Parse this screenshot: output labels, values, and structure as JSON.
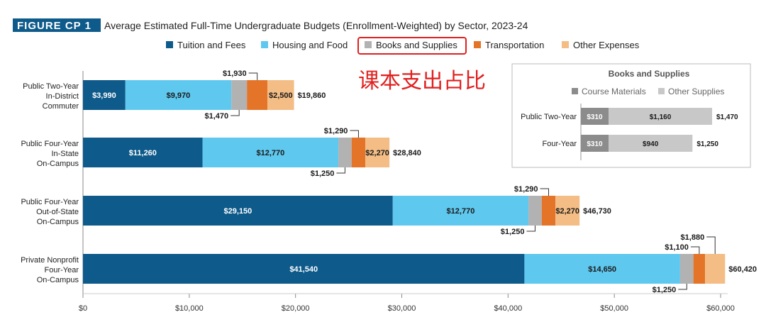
{
  "figure_label": "FIGURE CP 1",
  "chart_title": "Average Estimated Full-Time Undergraduate Budgets (Enrollment-Weighted) by Sector, 2023-24",
  "annotation": "课本支出占比",
  "colors": {
    "tuition": "#0e5a8a",
    "housing": "#5fc8ef",
    "books": "#b2b2b2",
    "transport": "#e37428",
    "other": "#f4bd85",
    "badge": "#0e5a8a",
    "highlight": "#e02020",
    "annotation": "#e02020",
    "axis": "#888888",
    "text": "#222222",
    "course_materials": "#8c8c8c",
    "other_supplies": "#c8c8c8"
  },
  "chart_data": {
    "type": "bar",
    "orientation": "horizontal",
    "stacked": true,
    "title": "Average Estimated Full-Time Undergraduate Budgets (Enrollment-Weighted) by Sector, 2023-24",
    "legend": [
      "Tuition and Fees",
      "Housing and Food",
      "Books and Supplies",
      "Transportation",
      "Other Expenses"
    ],
    "highlighted_legend_item": "Books and Supplies",
    "xlim": [
      0,
      60000
    ],
    "x_ticks": [
      0,
      10000,
      20000,
      30000,
      40000,
      50000,
      60000
    ],
    "x_tick_labels": [
      "$0",
      "$10,000",
      "$20,000",
      "$30,000",
      "$40,000",
      "$50,000",
      "$60,000"
    ],
    "categories": [
      [
        "Public Two-Year",
        "In-District",
        "Commuter"
      ],
      [
        "Public Four-Year",
        "In-State",
        "On-Campus"
      ],
      [
        "Public Four-Year",
        "Out-of-State",
        "On-Campus"
      ],
      [
        "Private Nonprofit",
        "Four-Year",
        "On-Campus"
      ]
    ],
    "series": [
      {
        "name": "Tuition and Fees",
        "key": "tuition",
        "values": [
          3990,
          11260,
          29150,
          41540
        ],
        "labels": [
          "$3,990",
          "$11,260",
          "$29,150",
          "$41,540"
        ]
      },
      {
        "name": "Housing and Food",
        "key": "housing",
        "values": [
          9970,
          12770,
          12770,
          14650
        ],
        "labels": [
          "$9,970",
          "$12,770",
          "$12,770",
          "$14,650"
        ]
      },
      {
        "name": "Books and Supplies",
        "key": "books",
        "values": [
          1470,
          1250,
          1250,
          1250
        ],
        "labels": [
          "$1,470",
          "$1,250",
          "$1,250",
          "$1,250"
        ]
      },
      {
        "name": "Transportation",
        "key": "transport",
        "values": [
          1930,
          1290,
          1290,
          1100
        ],
        "labels": [
          "$1,930",
          "$1,290",
          "$1,290",
          "$1,100"
        ]
      },
      {
        "name": "Other Expenses",
        "key": "other",
        "values": [
          2500,
          2270,
          2270,
          1880
        ],
        "labels": [
          "$2,500",
          "$2,270",
          "$2,270",
          "$1,880"
        ]
      }
    ],
    "totals": [
      19860,
      28840,
      46730,
      60420
    ],
    "total_labels": [
      "$19,860",
      "$28,840",
      "$46,730",
      "$60,420"
    ],
    "inset": {
      "type": "bar",
      "orientation": "horizontal",
      "stacked": true,
      "title": "Books and Supplies",
      "legend": [
        "Course Materials",
        "Other Supplies"
      ],
      "categories": [
        "Public Two-Year",
        "Four-Year"
      ],
      "series": [
        {
          "name": "Course Materials",
          "values": [
            310,
            310
          ],
          "labels": [
            "$310",
            "$310"
          ]
        },
        {
          "name": "Other Supplies",
          "values": [
            1160,
            940
          ],
          "labels": [
            "$1,160",
            "$940"
          ]
        }
      ],
      "total_labels": [
        "$1,470",
        "$1,250"
      ]
    }
  }
}
